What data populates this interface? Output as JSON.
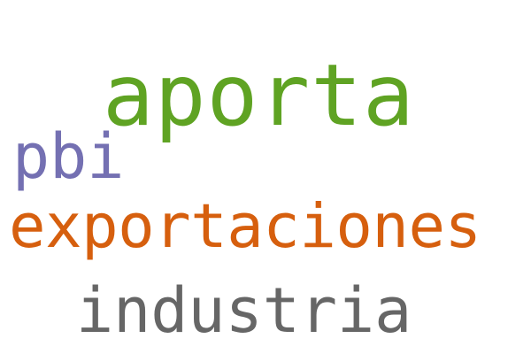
{
  "words": [
    {
      "text": "aporta",
      "color": "#5fa323"
    },
    {
      "text": "pbi",
      "color": "#7470b2"
    },
    {
      "text": "exportaciones",
      "color": "#d65f0e"
    },
    {
      "text": "industria",
      "color": "#666666"
    }
  ]
}
